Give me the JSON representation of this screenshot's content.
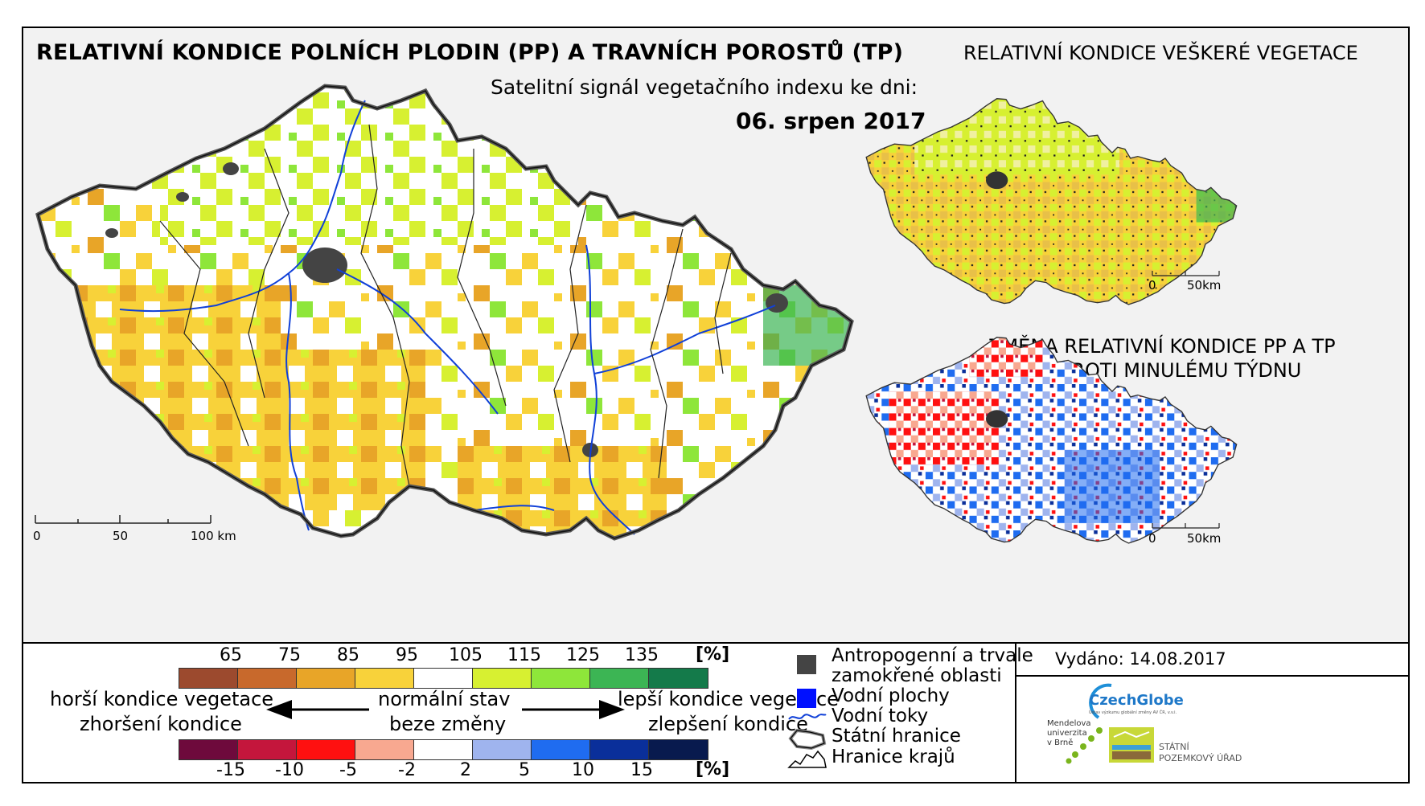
{
  "main_title": "RELATIVNÍ KONDICE POLNÍCH PLODIN (PP) A TRAVNÍCH POROSTŮ (TP)",
  "subtitle": "Satelitní signál vegetačního indexu ke dni:",
  "date": "06. srpen 2017",
  "right_top_title": "RELATIVNÍ KONDICE VEŠKERÉ VEGETACE",
  "right_bottom_title_line1": "ZMĚNA RELATIVNÍ KONDICE PP A TP",
  "right_bottom_title_line2": "OPROTI MINULÉMU TÝDNU",
  "main_scale": {
    "labels": [
      "0",
      "50",
      "100 km"
    ]
  },
  "small_scale": {
    "labels": [
      "0",
      "50km"
    ]
  },
  "condition_legend": {
    "ticks": [
      "65",
      "75",
      "85",
      "95",
      "105",
      "115",
      "125",
      "135"
    ],
    "unit": "[%]",
    "colors": [
      "#9c4a2e",
      "#c8692c",
      "#e8a528",
      "#f8d23a",
      "#ffffff",
      "#d7f031",
      "#8ee63a",
      "#3cb554",
      "#147a4a"
    ]
  },
  "change_legend": {
    "ticks": [
      "-15",
      "-10",
      "-5",
      "-2",
      "2",
      "5",
      "10",
      "15"
    ],
    "unit": "[%]",
    "colors": [
      "#6e0a3c",
      "#c4163c",
      "#ff1010",
      "#f8a890",
      "#ffffff",
      "#9fb4ee",
      "#1f6cf0",
      "#0a2f9a",
      "#081a4e"
    ]
  },
  "arrows": {
    "left_line1": "horší kondice vegetace",
    "left_line2": "zhoršení kondice",
    "center_line1": "normální stav",
    "center_line2": "beze změny",
    "right_line1": "lepší kondice vegetace",
    "right_line2": "zlepšení kondice"
  },
  "map_legend": {
    "urban_line1": "Antropogenní a trvale",
    "urban_line2": "zamokřené oblasti",
    "water_bodies": "Vodní plochy",
    "rivers": "Vodní toky",
    "state_border": "Státní hranice",
    "region_border": "Hranice krajů",
    "urban_color": "#444444",
    "water_color": "#0010ff",
    "river_color": "#1040d8"
  },
  "issued": "Vydáno: 14.08.2017",
  "logos": {
    "czechglobe": "CzechGlobe",
    "czechglobe_sub": "Ústav výzkumu globální změny AV ČR, v.v.i.",
    "mendel_line1": "Mendelova",
    "mendel_line2": "univerzita",
    "mendel_line3": "v Brně",
    "spu_line1": "STÁTNÍ",
    "spu_line2": "POZEMKOVÝ ÚŘAD"
  }
}
